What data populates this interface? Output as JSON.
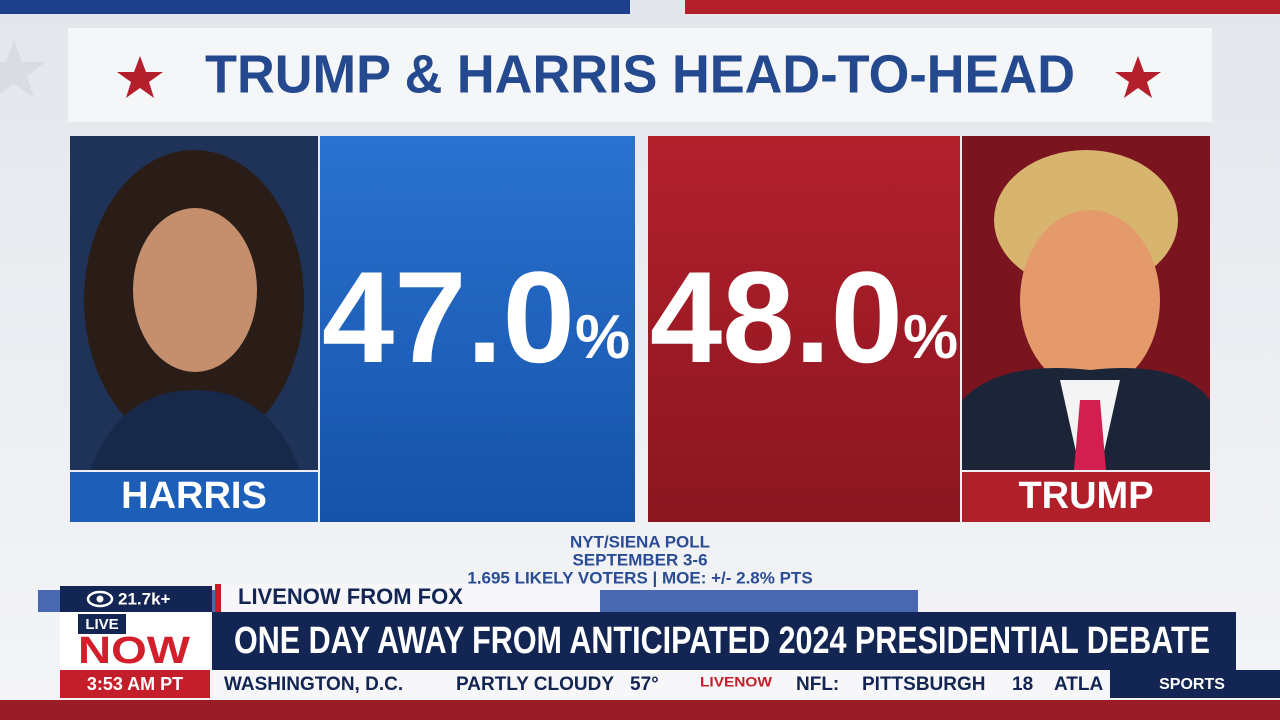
{
  "graphic": {
    "title": "TRUMP & HARRIS HEAD-TO-HEAD",
    "left": {
      "name": "HARRIS",
      "value": "47.0",
      "unit": "%"
    },
    "right": {
      "value": "48.0",
      "unit": "%",
      "name": "TRUMP"
    },
    "source": [
      "NYT/SIENA POLL",
      "SEPTEMBER 3-6",
      "1,695 LIKELY VOTERS | MOE: +/- 2.8% PTS"
    ]
  },
  "lower_third": {
    "viewers": "21.7k+",
    "channel": "LIVENOW FROM FOX",
    "live": "LIVE",
    "now": "NOW",
    "time": "3:53 AM PT",
    "headline": "ONE DAY AWAY FROM ANTICIPATED 2024 PRESIDENTIAL DEBATE",
    "ticker": [
      "WASHINGTON, D.C.",
      "PARTLY CLOUDY",
      "57°",
      "NFL:",
      "PITTSBURGH",
      "18",
      "ATLA"
    ],
    "ticker_logo": "LIVENOW",
    "section": "SPORTS"
  }
}
